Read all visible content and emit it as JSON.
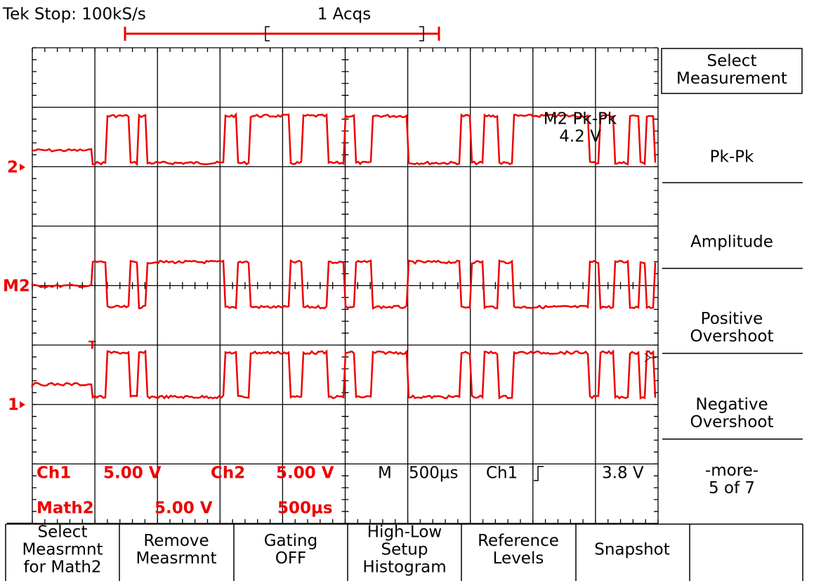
{
  "header": {
    "status": "Tek Stop: 100kS/s",
    "acquisitions": "1 Acqs"
  },
  "markers": {
    "ch2": "2",
    "math2": "M2",
    "ch1": "1",
    "trigger": "T"
  },
  "measurement": {
    "label": "M2 Pk-Pk",
    "value": "4.2 V"
  },
  "readouts": {
    "ch1_label": "Ch1",
    "ch1_scale": "5.00 V",
    "ch2_label": "Ch2",
    "ch2_scale": "5.00 V",
    "math2_label": "Math2",
    "math2_scale": "5.00 V",
    "math2_time": "500µs",
    "timebase_label": "M",
    "timebase": "500µs",
    "trigger_source": "Ch1",
    "trigger_level": "3.8 V"
  },
  "side_menu": [
    [
      "Select",
      "Measurement"
    ],
    [
      "Pk-Pk"
    ],
    [
      "Amplitude"
    ],
    [
      "Positive",
      "Overshoot"
    ],
    [
      "Negative",
      "Overshoot"
    ],
    [
      "-more-",
      "5 of 7"
    ]
  ],
  "bottom_menu": [
    [
      "Select",
      "Measrmnt",
      "for Math2"
    ],
    [
      "Remove",
      "Measrmnt"
    ],
    [
      "Gating",
      "OFF"
    ],
    [
      "High-Low",
      "Setup",
      "Histogram"
    ],
    [
      "Reference",
      "Levels"
    ],
    [
      "Snapshot"
    ]
  ]
}
